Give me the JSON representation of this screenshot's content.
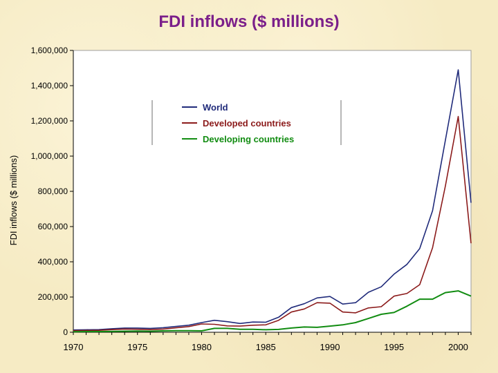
{
  "page": {
    "title": "FDI inflows ($ millions)"
  },
  "chart_data": {
    "type": "line",
    "title": "FDI inflows ($ millions)",
    "xlabel": "",
    "ylabel": "FDI inflows ($ millions)",
    "xlim": [
      1970,
      2001
    ],
    "ylim": [
      0,
      1600000
    ],
    "yticks": [
      0,
      200000,
      400000,
      600000,
      800000,
      1000000,
      1200000,
      1400000,
      1600000
    ],
    "ytick_labels": [
      "0",
      "200,000",
      "400,000",
      "600,000",
      "800,000",
      "1,000,000",
      "1,200,000",
      "1,400,000",
      "1,600,000"
    ],
    "xticks": [
      1970,
      1975,
      1980,
      1985,
      1990,
      1995,
      2000
    ],
    "xtick_labels": [
      "1970",
      "1975",
      "1980",
      "1985",
      "1990",
      "1995",
      "2000"
    ],
    "grid": false,
    "legend_position": "top-left",
    "x": [
      1970,
      1971,
      1972,
      1973,
      1974,
      1975,
      1976,
      1977,
      1978,
      1979,
      1980,
      1981,
      1982,
      1983,
      1984,
      1985,
      1986,
      1987,
      1988,
      1989,
      1990,
      1991,
      1992,
      1993,
      1994,
      1995,
      1996,
      1997,
      1998,
      1999,
      2000,
      2001
    ],
    "series": [
      {
        "name": "World",
        "color": "#1f2a7a",
        "values": [
          13000,
          14000,
          15000,
          20000,
          24000,
          24000,
          22000,
          26000,
          33000,
          40000,
          55000,
          68000,
          60000,
          50000,
          58000,
          57000,
          85000,
          140000,
          162000,
          195000,
          203000,
          160000,
          168000,
          227000,
          258000,
          330000,
          385000,
          475000,
          690000,
          1090000,
          1490000,
          735000
        ]
      },
      {
        "name": "Developed countries",
        "color": "#8b1a1a",
        "values": [
          9000,
          10000,
          11000,
          15000,
          18000,
          17000,
          15000,
          18000,
          25000,
          32000,
          47000,
          45000,
          36000,
          35000,
          40000,
          42000,
          68000,
          115000,
          132000,
          168000,
          165000,
          115000,
          110000,
          138000,
          145000,
          205000,
          220000,
          270000,
          480000,
          830000,
          1225000,
          505000
        ]
      },
      {
        "name": "Developing countries",
        "color": "#118c11",
        "values": [
          3000,
          4000,
          4000,
          5000,
          6000,
          7000,
          6000,
          8000,
          9000,
          9000,
          8000,
          22000,
          22000,
          17000,
          17000,
          14000,
          16000,
          24000,
          30000,
          28000,
          35000,
          42000,
          55000,
          78000,
          102000,
          112000,
          148000,
          188000,
          188000,
          225000,
          235000,
          205000
        ]
      }
    ]
  }
}
